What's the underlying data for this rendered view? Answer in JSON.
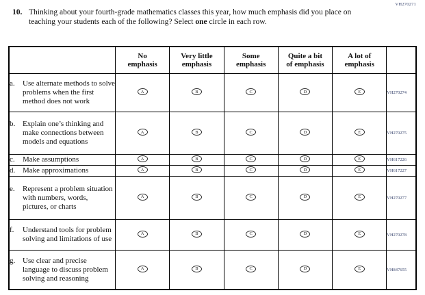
{
  "page": {
    "corner_code": "VH270271"
  },
  "question": {
    "number": "10.",
    "text_before_bold": "Thinking about your fourth-grade mathematics classes this year, how much emphasis did you place on teaching your students each of the following? Select",
    "bold_word": "one",
    "text_after_bold": "circle in each row."
  },
  "options": {
    "letters": [
      "A",
      "B",
      "C",
      "D",
      "E"
    ]
  },
  "table": {
    "headers": [
      {
        "line1": "No",
        "line2": "emphasis"
      },
      {
        "line1": "Very little",
        "line2": "emphasis"
      },
      {
        "line1": "Some",
        "line2": "emphasis"
      },
      {
        "line1": "Quite a bit",
        "line2": "of emphasis"
      },
      {
        "line1": "A lot of",
        "line2": "emphasis"
      }
    ],
    "rows": [
      {
        "letter": "a.",
        "text": "Use alternate methods to solve problems when the first method does not work",
        "code": "VH270274"
      },
      {
        "letter": "b.",
        "text": "Explain one’s thinking and make connections between models and equations",
        "code": "VH270275"
      },
      {
        "letter": "c.",
        "text": "Make assumptions",
        "code": "VH617226"
      },
      {
        "letter": "d.",
        "text": "Make approximations",
        "code": "VH617227"
      },
      {
        "letter": "e.",
        "text": "Represent a problem situation with numbers, words, pictures, or charts",
        "code": "VH270277"
      },
      {
        "letter": "f.",
        "text": "Understand tools for problem solving and limitations of use",
        "code": "VH270278"
      },
      {
        "letter": "g.",
        "text": "Use clear and precise language to discuss problem solving and reasoning",
        "code": "VH847655"
      }
    ]
  },
  "colors": {
    "code_text": "#35426b",
    "border": "#000000",
    "text": "#111111"
  }
}
